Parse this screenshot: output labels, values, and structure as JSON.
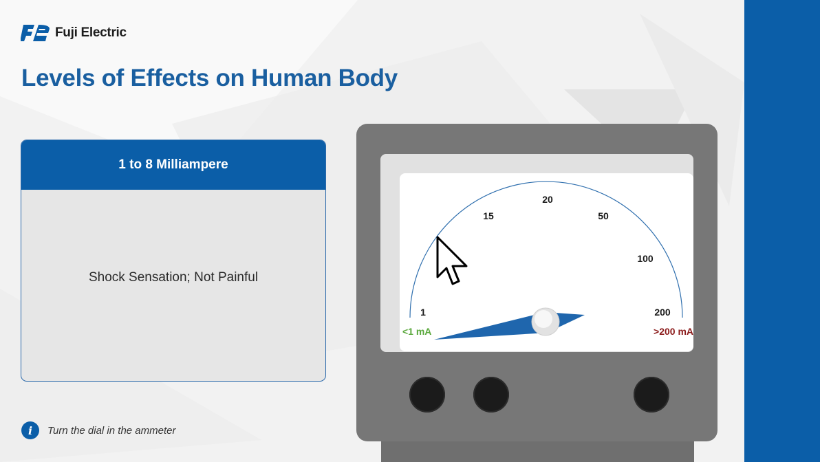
{
  "brand": {
    "name": "Fuji Electric",
    "mark": "FE logo"
  },
  "title": "Levels of Effects on Human Body",
  "card": {
    "heading": "1 to 8 Milliampere",
    "description": "Shock Sensation; Not Painful"
  },
  "hint": {
    "icon": "info-icon",
    "text": "Turn the dial in the ammeter"
  },
  "dial": {
    "scale_labels": [
      "1",
      "15",
      "20",
      "50",
      "100",
      "200"
    ],
    "min_label": "<1 mA",
    "max_label": ">200 mA",
    "needle_reading": "1 to 8 mA"
  },
  "colors": {
    "accent": "#0b5ea8",
    "title": "#1a5fa0",
    "min_label": "#5aa83c",
    "max_label": "#8b1a1a",
    "meter_body": "#777777"
  }
}
